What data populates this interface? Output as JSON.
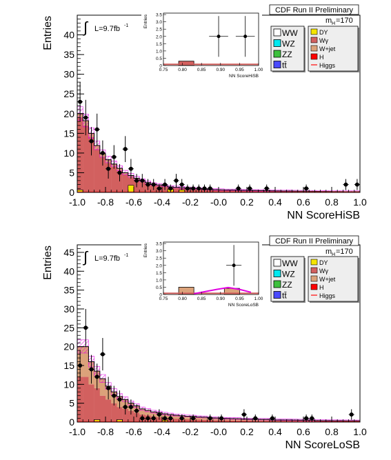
{
  "chart_data": [
    {
      "type": "histogram",
      "header": "CDF Run II Preliminary",
      "mass_label": {
        "prefix": "m",
        "sub": "H",
        "suffix": "=170"
      },
      "lumi_label": "L=9.7fb",
      "lumi_sup": "-1",
      "integral_symbol": "∫",
      "xlabel": "NN ScoreHiSB",
      "ylabel": "Entries",
      "xlim": [
        -1.0,
        1.0
      ],
      "ylim": [
        0,
        45
      ],
      "xticks": [
        "-1.0",
        "-0.8",
        "-0.6",
        "-0.4",
        "-0.2",
        "-0.0",
        "0.2",
        "0.4",
        "0.6",
        "0.8",
        "1.0"
      ],
      "yticks": [
        "0",
        "5",
        "10",
        "15",
        "20",
        "25",
        "30",
        "35",
        "40"
      ],
      "bin_width": 0.04,
      "series": [
        {
          "name": "Wγ",
          "kind": "stack",
          "color": "#d2605f",
          "values": [
            19,
            17,
            14,
            11,
            9,
            7.5,
            6.5,
            5.5,
            4.5,
            3.8,
            3.2,
            2.6,
            2.2,
            1.8,
            1.6,
            1.4,
            1.2,
            1.1,
            1.0,
            0.9,
            0.8,
            0.75,
            0.7,
            0.65,
            0.6,
            0.55,
            0.5,
            0.5,
            0.45,
            0.42,
            0.4,
            0.38,
            0.35,
            0.32,
            0.3,
            0.28,
            0.26,
            0.25,
            0.22,
            0.2,
            0.2,
            0.18,
            0.16,
            0.15,
            0.14,
            0.12,
            0.12,
            0.1,
            0.1,
            0.1
          ]
        },
        {
          "name": "W+jet",
          "kind": "stack",
          "color": "#dba27a",
          "values": [
            1.0,
            1.2,
            1.0,
            0.9,
            0.8,
            0.8,
            0.7,
            0.6,
            0.5,
            0.5,
            0.4,
            0.4,
            0.3,
            0.3,
            0.3,
            0.3,
            0.2,
            0.2,
            0.2,
            0.2,
            0.2,
            0.2,
            0.1,
            0.1,
            0.1,
            0.1,
            0.1,
            0.1,
            0.1,
            0.1,
            0.1,
            0.1,
            0.1,
            0.1,
            0.1,
            0.1,
            0.1,
            0.1,
            0.1,
            0.1,
            0.1,
            0.1,
            0.1,
            0.1,
            0.1,
            0.1,
            0.1,
            0.1,
            0.1,
            0.1
          ]
        },
        {
          "name": "DY",
          "kind": "marker",
          "color": "#f5e500",
          "points": [
            {
              "x": -0.98,
              "y": 0.6
            },
            {
              "x": -0.62,
              "y": 1.8
            },
            {
              "x": -0.34,
              "y": 0.8
            },
            {
              "x": -0.26,
              "y": 0.6
            }
          ]
        }
      ],
      "stack_total": [
        20,
        18.2,
        15,
        11.9,
        9.8,
        8.3,
        7.2,
        6.1,
        5,
        4.3,
        3.6,
        3,
        2.5,
        2.1,
        1.9,
        1.7,
        1.4,
        1.3,
        1.2,
        1.1,
        1,
        0.95,
        0.8,
        0.75,
        0.7,
        0.65,
        0.6,
        0.6,
        0.55,
        0.52,
        0.5,
        0.48,
        0.45,
        0.42,
        0.4,
        0.38,
        0.36,
        0.35,
        0.32,
        0.3,
        0.3,
        0.28,
        0.26,
        0.25,
        0.24,
        0.22,
        0.22,
        0.2,
        0.2,
        0.2
      ],
      "higgs_color": "#e000e0",
      "data_points": [
        {
          "x": -0.98,
          "y": 23,
          "err": 5
        },
        {
          "x": -0.94,
          "y": 19,
          "err": 4.5
        },
        {
          "x": -0.9,
          "y": 13,
          "err": 3.6
        },
        {
          "x": -0.86,
          "y": 16,
          "err": 4.0
        },
        {
          "x": -0.82,
          "y": 10,
          "err": 3.2
        },
        {
          "x": -0.78,
          "y": 6,
          "err": 2.5
        },
        {
          "x": -0.74,
          "y": 9,
          "err": 3.0
        },
        {
          "x": -0.7,
          "y": 5,
          "err": 2.2
        },
        {
          "x": -0.66,
          "y": 11,
          "err": 3.3
        },
        {
          "x": -0.62,
          "y": 6,
          "err": 2.5
        },
        {
          "x": -0.58,
          "y": 3,
          "err": 1.7
        },
        {
          "x": -0.54,
          "y": 3,
          "err": 1.7
        },
        {
          "x": -0.5,
          "y": 2,
          "err": 1.4
        },
        {
          "x": -0.46,
          "y": 2,
          "err": 1.4
        },
        {
          "x": -0.42,
          "y": 1,
          "err": 1.0
        },
        {
          "x": -0.38,
          "y": 2,
          "err": 1.4
        },
        {
          "x": -0.34,
          "y": 1,
          "err": 1.0
        },
        {
          "x": -0.3,
          "y": 3,
          "err": 1.7
        },
        {
          "x": -0.26,
          "y": 2,
          "err": 1.4
        },
        {
          "x": -0.22,
          "y": 1,
          "err": 1.0
        },
        {
          "x": -0.18,
          "y": 1,
          "err": 1.0
        },
        {
          "x": -0.14,
          "y": 1,
          "err": 1.0
        },
        {
          "x": -0.1,
          "y": 1,
          "err": 1.0
        },
        {
          "x": -0.06,
          "y": 1,
          "err": 1.0
        },
        {
          "x": 0.14,
          "y": 1,
          "err": 1.0
        },
        {
          "x": 0.22,
          "y": 1,
          "err": 1.0
        },
        {
          "x": 0.34,
          "y": 1,
          "err": 1.0
        },
        {
          "x": 0.62,
          "y": 1,
          "err": 1.0
        },
        {
          "x": 0.9,
          "y": 2,
          "err": 1.4
        },
        {
          "x": 0.98,
          "y": 2,
          "err": 1.4
        }
      ],
      "legend": [
        {
          "label": "WW",
          "color": "#ffffff"
        },
        {
          "label": "WZ",
          "color": "#00e8f0"
        },
        {
          "label": "ZZ",
          "color": "#3dc03d"
        },
        {
          "label": "tt̄",
          "color": "#4a4aff"
        }
      ],
      "legend2": [
        {
          "label": "DY",
          "color": "#f5e500",
          "kind": "box"
        },
        {
          "label": "Wγ",
          "color": "#d2605f",
          "kind": "box"
        },
        {
          "label": "W+jet",
          "color": "#dba27a",
          "kind": "box"
        },
        {
          "label": "H",
          "color": "#ff0000",
          "kind": "box"
        },
        {
          "label": "Higgs",
          "color": "#ff3333",
          "kind": "line"
        }
      ],
      "inset": {
        "ylabel": "Entries",
        "xlabel": "NN ScoreHiSB",
        "xlim": [
          0.75,
          1.0
        ],
        "ylim": [
          0,
          3.6
        ],
        "xticks": [
          "0.75",
          "0.80",
          "0.85",
          "0.90",
          "0.95",
          "1.00"
        ],
        "yticks": [
          "0",
          "0.5",
          "1.0",
          "1.5",
          "2.0",
          "2.5",
          "3.0",
          "3.5"
        ],
        "bars": [
          {
            "x0": 0.79,
            "x1": 0.83,
            "y": 0.3,
            "color": "#d2605f"
          }
        ],
        "base_level": 0.08,
        "higgs_curve": [],
        "data_points": [
          {
            "x": 0.895,
            "y": 2.0,
            "xerr": 0.025,
            "err": 1.4
          },
          {
            "x": 0.965,
            "y": 2.0,
            "xerr": 0.025,
            "err": 1.4
          }
        ]
      }
    },
    {
      "type": "histogram",
      "header": "CDF Run II Preliminary",
      "mass_label": {
        "prefix": "m",
        "sub": "H",
        "suffix": "=170"
      },
      "lumi_label": "L=9.7fb",
      "lumi_sup": "-1",
      "integral_symbol": "∫",
      "xlabel": "NN ScoreLoSB",
      "ylabel": "Entries",
      "xlim": [
        -1.0,
        1.0
      ],
      "ylim": [
        0,
        47
      ],
      "xticks": [
        "-1.0",
        "-0.8",
        "-0.6",
        "-0.4",
        "-0.2",
        "-0.0",
        "0.2",
        "0.4",
        "0.6",
        "0.8",
        "1.0"
      ],
      "yticks": [
        "0",
        "5",
        "10",
        "15",
        "20",
        "25",
        "30",
        "35",
        "40",
        "45"
      ],
      "bin_width": 0.04,
      "series": [
        {
          "name": "Wγ",
          "kind": "stack",
          "color": "#d2605f",
          "values": [
            12,
            12,
            10,
            9,
            7,
            6,
            5,
            4,
            3.5,
            3,
            2.5,
            2,
            1.8,
            1.5,
            1.3,
            1.1,
            1.0,
            0.9,
            0.8,
            0.75,
            0.7,
            0.65,
            0.6,
            0.55,
            0.5,
            0.5,
            0.45,
            0.42,
            0.4,
            0.38,
            0.35,
            0.33,
            0.3,
            0.3,
            0.28,
            0.26,
            0.25,
            0.24,
            0.22,
            0.2,
            0.2,
            0.2,
            0.18,
            0.17,
            0.16,
            0.15,
            0.14,
            0.13,
            0.12,
            0.12
          ]
        },
        {
          "name": "W+jet",
          "kind": "stack",
          "color": "#dba27a",
          "values": [
            8,
            8,
            6,
            4.5,
            4.5,
            3.5,
            3,
            2.8,
            2.5,
            2,
            1.8,
            1.5,
            1.3,
            1.2,
            1.2,
            1.1,
            1.0,
            0.9,
            0.9,
            0.8,
            0.8,
            0.7,
            0.7,
            0.6,
            0.6,
            0.5,
            0.5,
            0.5,
            0.5,
            0.4,
            0.4,
            0.4,
            0.4,
            0.4,
            0.3,
            0.3,
            0.3,
            0.3,
            0.3,
            0.3,
            0.3,
            0.3,
            0.2,
            0.2,
            0.2,
            0.2,
            0.2,
            0.2,
            0.2,
            0.2
          ]
        },
        {
          "name": "DY",
          "kind": "marker",
          "color": "#f5e500",
          "points": [
            {
              "x": -0.86,
              "y": 0.6
            },
            {
              "x": -0.7,
              "y": 0.6
            },
            {
              "x": -0.38,
              "y": 0.5
            }
          ]
        }
      ],
      "stack_total": [
        20,
        20,
        16,
        13.5,
        11.5,
        9.5,
        8,
        6.8,
        6,
        5,
        4.3,
        3.5,
        3.1,
        2.7,
        2.5,
        2.2,
        2,
        1.8,
        1.7,
        1.55,
        1.5,
        1.35,
        1.3,
        1.15,
        1.1,
        1,
        0.95,
        0.92,
        0.9,
        0.78,
        0.75,
        0.73,
        0.7,
        0.7,
        0.58,
        0.56,
        0.55,
        0.54,
        0.52,
        0.5,
        0.5,
        0.5,
        0.38,
        0.37,
        0.36,
        0.35,
        0.34,
        0.33,
        0.32,
        0.32
      ],
      "higgs_color": "#e000e0",
      "data_points": [
        {
          "x": -0.98,
          "y": 15,
          "err": 4.0
        },
        {
          "x": -0.94,
          "y": 25,
          "err": 5.0
        },
        {
          "x": -0.9,
          "y": 14,
          "err": 3.8
        },
        {
          "x": -0.86,
          "y": 12,
          "err": 3.5
        },
        {
          "x": -0.82,
          "y": 18,
          "err": 4.3
        },
        {
          "x": -0.78,
          "y": 9,
          "err": 3.0
        },
        {
          "x": -0.74,
          "y": 7,
          "err": 2.6
        },
        {
          "x": -0.7,
          "y": 6,
          "err": 2.4
        },
        {
          "x": -0.66,
          "y": 4,
          "err": 2.0
        },
        {
          "x": -0.62,
          "y": 4,
          "err": 2.0
        },
        {
          "x": -0.58,
          "y": 3,
          "err": 1.7
        },
        {
          "x": -0.54,
          "y": 1,
          "err": 1.0
        },
        {
          "x": -0.5,
          "y": 1,
          "err": 1.0
        },
        {
          "x": -0.46,
          "y": 1,
          "err": 1.0
        },
        {
          "x": -0.42,
          "y": 2,
          "err": 1.4
        },
        {
          "x": -0.38,
          "y": 1,
          "err": 1.0
        },
        {
          "x": -0.34,
          "y": 1,
          "err": 1.0
        },
        {
          "x": -0.26,
          "y": 1,
          "err": 1.0
        },
        {
          "x": -0.18,
          "y": 1,
          "err": 1.0
        },
        {
          "x": -0.06,
          "y": 1,
          "err": 1.0
        },
        {
          "x": 0.02,
          "y": 1,
          "err": 1.0
        },
        {
          "x": 0.18,
          "y": 2,
          "err": 1.4
        },
        {
          "x": 0.26,
          "y": 1,
          "err": 1.0
        },
        {
          "x": 0.38,
          "y": 1,
          "err": 1.0
        },
        {
          "x": 0.62,
          "y": 1,
          "err": 1.0
        },
        {
          "x": 0.66,
          "y": 1,
          "err": 1.0
        },
        {
          "x": 0.94,
          "y": 2,
          "err": 1.4
        }
      ],
      "legend": [
        {
          "label": "WW",
          "color": "#ffffff"
        },
        {
          "label": "WZ",
          "color": "#00e8f0"
        },
        {
          "label": "ZZ",
          "color": "#3dc03d"
        },
        {
          "label": "tt̄",
          "color": "#4a4aff"
        }
      ],
      "legend2": [
        {
          "label": "DY",
          "color": "#f5e500",
          "kind": "box"
        },
        {
          "label": "Wγ",
          "color": "#d2605f",
          "kind": "box"
        },
        {
          "label": "W+jet",
          "color": "#dba27a",
          "kind": "box"
        },
        {
          "label": "H",
          "color": "#ff0000",
          "kind": "box"
        },
        {
          "label": "Higgs",
          "color": "#ff3333",
          "kind": "line"
        }
      ],
      "inset": {
        "ylabel": "Entries",
        "xlabel": "NN ScoreLoSB",
        "xlim": [
          0.75,
          1.0
        ],
        "ylim": [
          0,
          3.6
        ],
        "xticks": [
          "0.75",
          "0.80",
          "0.85",
          "0.90",
          "0.95",
          "1.00"
        ],
        "yticks": [
          "0",
          "0.5",
          "1.0",
          "1.5",
          "2.0",
          "2.5",
          "3.0",
          "3.5"
        ],
        "bars": [
          {
            "x0": 0.79,
            "x1": 0.83,
            "y": 0.5,
            "color": "#dba27a"
          },
          {
            "x0": 0.91,
            "x1": 0.95,
            "y": 0.42,
            "color": "#dba27a"
          }
        ],
        "base_level": 0.08,
        "higgs_curve": [
          [
            0.83,
            0.05
          ],
          [
            0.86,
            0.2
          ],
          [
            0.89,
            0.35
          ],
          [
            0.92,
            0.48
          ],
          [
            0.95,
            0.35
          ],
          [
            0.98,
            0.15
          ]
        ],
        "data_points": [
          {
            "x": 0.935,
            "y": 2.0,
            "xerr": 0.02,
            "err": 1.4
          }
        ]
      }
    }
  ]
}
